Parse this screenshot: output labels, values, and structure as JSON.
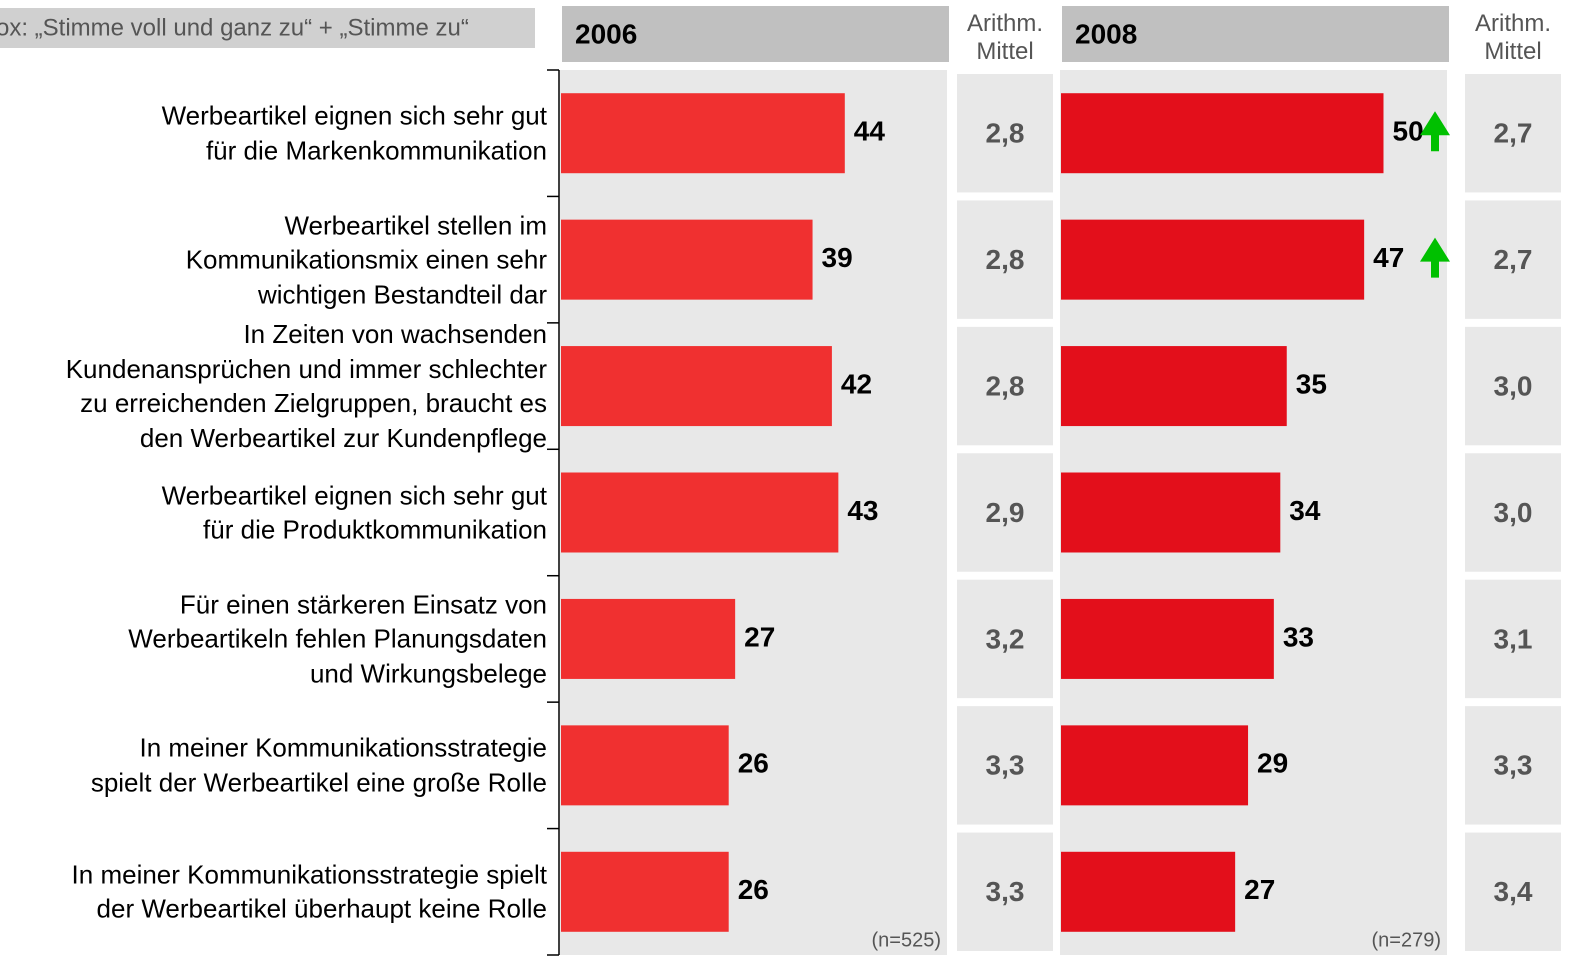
{
  "chart_data": {
    "type": "bar",
    "subtitle": "ox: „Stimme voll und ganz zu“ + „Stimme zu“",
    "categories": [
      "Werbeartikel eignen sich sehr gut\nfür die Markenkommunikation",
      "Werbeartikel stellen im\nKommunikationsmix einen sehr\nwichtigen Bestandteil dar",
      "In Zeiten von wachsenden\nKundenansprüchen und immer schlechter\nzu erreichenden Zielgruppen, braucht es\nden Werbeartikel zur Kundenpflege",
      "Werbeartikel eignen sich sehr gut\nfür die Produktkommunikation",
      "Für einen stärkeren Einsatz von\nWerbeartikeln fehlen Planungsdaten\nund Wirkungsbelege",
      "In meiner Kommunikationsstrategie\nspielt der Werbeartikel eine große Rolle",
      "In meiner Kommunikationsstrategie spielt\nder Werbeartikel überhaupt keine Rolle"
    ],
    "xlim": [
      0,
      60
    ],
    "panels": [
      {
        "title": "2006",
        "color": "#f03030",
        "values": [
          44,
          39,
          42,
          43,
          27,
          26,
          26
        ],
        "note": "(n=525)",
        "mean_title": "Arithm.\nMittel",
        "means": [
          "2,8",
          "2,8",
          "2,8",
          "2,9",
          "3,2",
          "3,3",
          "3,3"
        ]
      },
      {
        "title": "2008",
        "color": "#e30f1b",
        "values": [
          50,
          47,
          35,
          34,
          33,
          29,
          27
        ],
        "note": "(n=279)",
        "mean_title": "Arithm.\nMittel",
        "means": [
          "2,7",
          "2,7",
          "3,0",
          "3,0",
          "3,1",
          "3,3",
          "3,4"
        ],
        "increase": [
          true,
          true,
          false,
          false,
          false,
          false,
          false
        ],
        "increase_color": "#00c000"
      }
    ]
  }
}
